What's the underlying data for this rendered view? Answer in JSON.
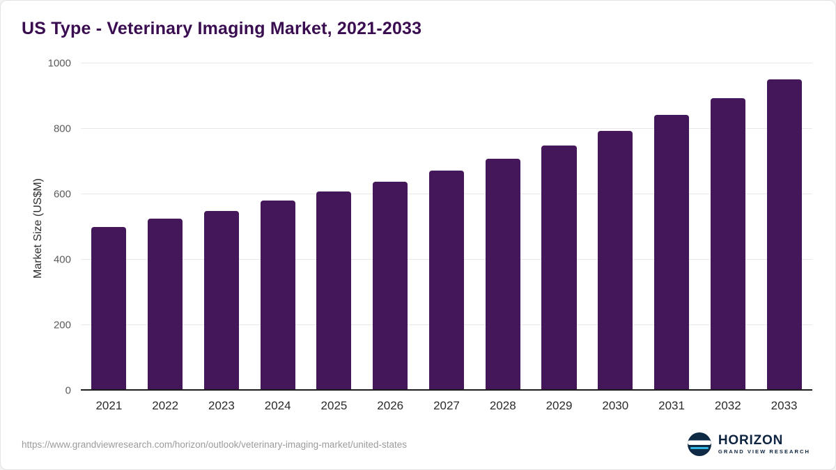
{
  "chart_data": {
    "type": "bar",
    "title": "US Type - Veterinary Imaging Market, 2021-2033",
    "categories": [
      "2021",
      "2022",
      "2023",
      "2024",
      "2025",
      "2026",
      "2027",
      "2028",
      "2029",
      "2030",
      "2031",
      "2032",
      "2033"
    ],
    "values": [
      501,
      525,
      550,
      580,
      608,
      638,
      672,
      709,
      750,
      794,
      842,
      893,
      952
    ],
    "xlabel": "",
    "ylabel": "Market Size (US$M)",
    "ylim": [
      0,
      1000
    ],
    "yticks": [
      0,
      200,
      400,
      600,
      800,
      1000
    ],
    "bar_color": "#44175b",
    "grid": "horizontal",
    "legend": "none"
  },
  "footer": {
    "source_url": "https://www.grandviewresearch.com/horizon/outlook/veterinary-imaging-market/united-states",
    "logo": {
      "name": "HORIZON",
      "subtitle": "GRAND VIEW RESEARCH",
      "icon": "horizon-circle-icon",
      "icon_dark": "#0f2a44",
      "icon_accent": "#35b6e4"
    }
  }
}
